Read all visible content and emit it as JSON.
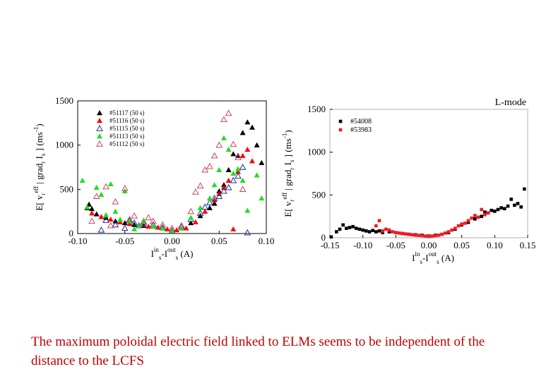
{
  "caption": "The maximum poloidal electric field linked to ELMs seems to be independent of the distance to the LCFS",
  "chart_data": [
    {
      "type": "scatter",
      "xlim": [
        -0.1,
        0.1
      ],
      "ylim": [
        0,
        1500
      ],
      "xticks": [
        "-0.10",
        "-0.05",
        "0.00",
        "0.05",
        "0.10"
      ],
      "yticks": [
        "0",
        "500",
        "1000",
        "1500"
      ],
      "legend_position": "top-left",
      "series": [
        {
          "name": "#51117 (50 s)",
          "marker": "triangle-filled",
          "color": "#000000",
          "points": [
            [
              -0.09,
              290
            ],
            [
              -0.088,
              330
            ],
            [
              -0.085,
              280
            ],
            [
              -0.08,
              220
            ],
            [
              -0.07,
              180
            ],
            [
              -0.06,
              140
            ],
            [
              -0.05,
              120
            ],
            [
              -0.04,
              100
            ],
            [
              -0.03,
              90
            ],
            [
              -0.02,
              80
            ],
            [
              -0.01,
              60
            ],
            [
              0.0,
              40
            ],
            [
              0.01,
              60
            ],
            [
              0.02,
              120
            ],
            [
              0.03,
              200
            ],
            [
              0.04,
              290
            ],
            [
              0.045,
              340
            ],
            [
              0.05,
              480
            ],
            [
              0.055,
              550
            ],
            [
              0.06,
              720
            ],
            [
              0.065,
              900
            ],
            [
              0.07,
              880
            ],
            [
              0.075,
              1140
            ],
            [
              0.08,
              1260
            ],
            [
              0.085,
              1200
            ],
            [
              0.09,
              1000
            ],
            [
              0.095,
              800
            ]
          ]
        },
        {
          "name": "#51116 (50 s)",
          "marker": "triangle-filled",
          "color": "#ff0000",
          "points": [
            [
              -0.085,
              230
            ],
            [
              -0.075,
              190
            ],
            [
              -0.065,
              160
            ],
            [
              -0.055,
              130
            ],
            [
              -0.045,
              110
            ],
            [
              -0.035,
              90
            ],
            [
              -0.025,
              80
            ],
            [
              -0.015,
              70
            ],
            [
              -0.005,
              50
            ],
            [
              0.005,
              40
            ],
            [
              0.015,
              60
            ],
            [
              0.025,
              130
            ],
            [
              0.035,
              250
            ],
            [
              0.045,
              380
            ],
            [
              0.05,
              450
            ],
            [
              0.055,
              520
            ],
            [
              0.06,
              600
            ],
            [
              0.065,
              50
            ],
            [
              0.07,
              700
            ],
            [
              0.075,
              880
            ],
            [
              0.08,
              950
            ],
            [
              0.085,
              820
            ]
          ]
        },
        {
          "name": "#51115 (50 s)",
          "marker": "triangle-open",
          "color": "#1f2f8f",
          "points": [
            [
              -0.075,
              40
            ],
            [
              -0.07,
              150
            ],
            [
              -0.06,
              100
            ],
            [
              -0.05,
              60
            ],
            [
              -0.045,
              150
            ],
            [
              -0.04,
              120
            ],
            [
              -0.035,
              90
            ],
            [
              -0.03,
              130
            ],
            [
              -0.02,
              100
            ],
            [
              -0.01,
              70
            ],
            [
              0.0,
              30
            ],
            [
              0.01,
              80
            ],
            [
              0.02,
              160
            ],
            [
              0.03,
              230
            ],
            [
              0.035,
              300
            ],
            [
              0.04,
              350
            ],
            [
              0.045,
              400
            ],
            [
              0.05,
              420
            ],
            [
              0.055,
              480
            ],
            [
              0.06,
              520
            ],
            [
              0.065,
              600
            ],
            [
              0.07,
              650
            ],
            [
              0.075,
              750
            ],
            [
              0.08,
              10
            ]
          ]
        },
        {
          "name": "#51113 (50 s)",
          "marker": "triangle-filled",
          "color": "#22dd22",
          "points": [
            [
              -0.095,
              600
            ],
            [
              -0.09,
              300
            ],
            [
              -0.08,
              520
            ],
            [
              -0.075,
              440
            ],
            [
              -0.07,
              210
            ],
            [
              -0.065,
              560
            ],
            [
              -0.06,
              250
            ],
            [
              -0.055,
              160
            ],
            [
              -0.05,
              480
            ],
            [
              -0.045,
              140
            ],
            [
              -0.04,
              50
            ],
            [
              -0.035,
              90
            ],
            [
              -0.03,
              150
            ],
            [
              -0.02,
              80
            ],
            [
              -0.01,
              60
            ],
            [
              0.0,
              30
            ],
            [
              0.01,
              60
            ],
            [
              0.02,
              180
            ],
            [
              0.03,
              290
            ],
            [
              0.04,
              400
            ],
            [
              0.045,
              550
            ],
            [
              0.05,
              720
            ],
            [
              0.055,
              1080
            ],
            [
              0.06,
              950
            ],
            [
              0.065,
              680
            ],
            [
              0.07,
              730
            ],
            [
              0.075,
              600
            ],
            [
              0.08,
              260
            ],
            [
              0.09,
              660
            ],
            [
              0.095,
              400
            ]
          ]
        },
        {
          "name": "#51112 (50 s)",
          "marker": "triangle-open",
          "color": "#cc4466",
          "points": [
            [
              -0.085,
              140
            ],
            [
              -0.08,
              420
            ],
            [
              -0.07,
              530
            ],
            [
              -0.065,
              90
            ],
            [
              -0.06,
              360
            ],
            [
              -0.05,
              510
            ],
            [
              -0.045,
              160
            ],
            [
              -0.04,
              200
            ],
            [
              -0.03,
              110
            ],
            [
              -0.025,
              180
            ],
            [
              -0.02,
              140
            ],
            [
              -0.01,
              100
            ],
            [
              0.0,
              60
            ],
            [
              0.01,
              90
            ],
            [
              0.02,
              250
            ],
            [
              0.025,
              470
            ],
            [
              0.03,
              540
            ],
            [
              0.035,
              720
            ],
            [
              0.04,
              760
            ],
            [
              0.045,
              880
            ],
            [
              0.05,
              1000
            ],
            [
              0.055,
              1290
            ],
            [
              0.06,
              1360
            ],
            [
              0.065,
              1010
            ],
            [
              0.07,
              860
            ],
            [
              0.075,
              500
            ]
          ]
        }
      ],
      "ylabel": {
        "lead": "E[ v",
        "sub1": "r",
        "sup1": "eff",
        "mid": " | grad",
        "sub2": "r",
        "mid2": " I",
        "sub3": "s",
        "tail": " ] (ms",
        "sup2": "-1",
        "close": ")"
      },
      "xlabel": {
        "a": "I",
        "sup1": "in",
        "sub1": "s",
        "b": "-I",
        "sup2": "out",
        "sub2": "s",
        "c": " (A)"
      }
    },
    {
      "type": "scatter",
      "title": "L-mode",
      "xlim": [
        -0.15,
        0.15
      ],
      "ylim": [
        0,
        1500
      ],
      "xticks": [
        "-0.15",
        "-0.10",
        "-0.05",
        "0.00",
        "0.05",
        "0.10",
        "0.15"
      ],
      "yticks": [
        "0",
        "500",
        "1000",
        "1500"
      ],
      "legend_position": "top-left",
      "series": [
        {
          "name": "#54008",
          "marker": "square-filled",
          "color": "#000000",
          "points": [
            [
              -0.148,
              10
            ],
            [
              -0.14,
              70
            ],
            [
              -0.135,
              100
            ],
            [
              -0.13,
              150
            ],
            [
              -0.125,
              110
            ],
            [
              -0.12,
              120
            ],
            [
              -0.115,
              130
            ],
            [
              -0.11,
              110
            ],
            [
              -0.105,
              100
            ],
            [
              -0.1,
              90
            ],
            [
              -0.095,
              80
            ],
            [
              -0.09,
              70
            ],
            [
              -0.085,
              85
            ],
            [
              -0.08,
              70
            ],
            [
              -0.075,
              80
            ],
            [
              -0.07,
              60
            ],
            [
              -0.06,
              70
            ],
            [
              -0.05,
              60
            ],
            [
              -0.04,
              50
            ],
            [
              -0.03,
              40
            ],
            [
              -0.02,
              35
            ],
            [
              -0.01,
              30
            ],
            [
              0.0,
              20
            ],
            [
              0.01,
              30
            ],
            [
              0.02,
              40
            ],
            [
              0.03,
              60
            ],
            [
              0.04,
              100
            ],
            [
              0.05,
              150
            ],
            [
              0.06,
              180
            ],
            [
              0.07,
              220
            ],
            [
              0.08,
              250
            ],
            [
              0.085,
              300
            ],
            [
              0.09,
              290
            ],
            [
              0.095,
              320
            ],
            [
              0.1,
              310
            ],
            [
              0.105,
              330
            ],
            [
              0.11,
              350
            ],
            [
              0.115,
              340
            ],
            [
              0.12,
              370
            ],
            [
              0.125,
              450
            ],
            [
              0.13,
              380
            ],
            [
              0.135,
              400
            ],
            [
              0.14,
              360
            ],
            [
              0.145,
              570
            ]
          ]
        },
        {
          "name": "#53983",
          "marker": "square-filled",
          "color": "#ee1c24",
          "points": [
            [
              -0.08,
              140
            ],
            [
              -0.075,
              200
            ],
            [
              -0.07,
              80
            ],
            [
              -0.065,
              100
            ],
            [
              -0.06,
              90
            ],
            [
              -0.055,
              70
            ],
            [
              -0.05,
              60
            ],
            [
              -0.045,
              55
            ],
            [
              -0.04,
              50
            ],
            [
              -0.035,
              45
            ],
            [
              -0.03,
              40
            ],
            [
              -0.025,
              35
            ],
            [
              -0.02,
              30
            ],
            [
              -0.015,
              28
            ],
            [
              -0.01,
              25
            ],
            [
              -0.005,
              20
            ],
            [
              0.0,
              15
            ],
            [
              0.005,
              20
            ],
            [
              0.01,
              25
            ],
            [
              0.015,
              30
            ],
            [
              0.02,
              40
            ],
            [
              0.025,
              55
            ],
            [
              0.03,
              70
            ],
            [
              0.035,
              90
            ],
            [
              0.04,
              110
            ],
            [
              0.045,
              140
            ],
            [
              0.05,
              160
            ],
            [
              0.055,
              170
            ],
            [
              0.06,
              200
            ],
            [
              0.065,
              230
            ],
            [
              0.07,
              260
            ],
            [
              0.075,
              240
            ],
            [
              0.08,
              330
            ],
            [
              0.085,
              270
            ],
            [
              0.09,
              290
            ]
          ]
        }
      ],
      "ylabel": {
        "lead": "E[ v",
        "sub1": "r",
        "sup1": "eff",
        "mid": " | grad",
        "sub2": "r",
        "mid2": " I",
        "sub3": "s",
        "tail": " ] (ms",
        "sup2": "-1",
        "close": ")"
      },
      "xlabel": {
        "a": "I",
        "sup1": "in",
        "sub1": "s",
        "b": "-I",
        "sup2": "out",
        "sub2": "s",
        "c": " (A)"
      }
    }
  ]
}
